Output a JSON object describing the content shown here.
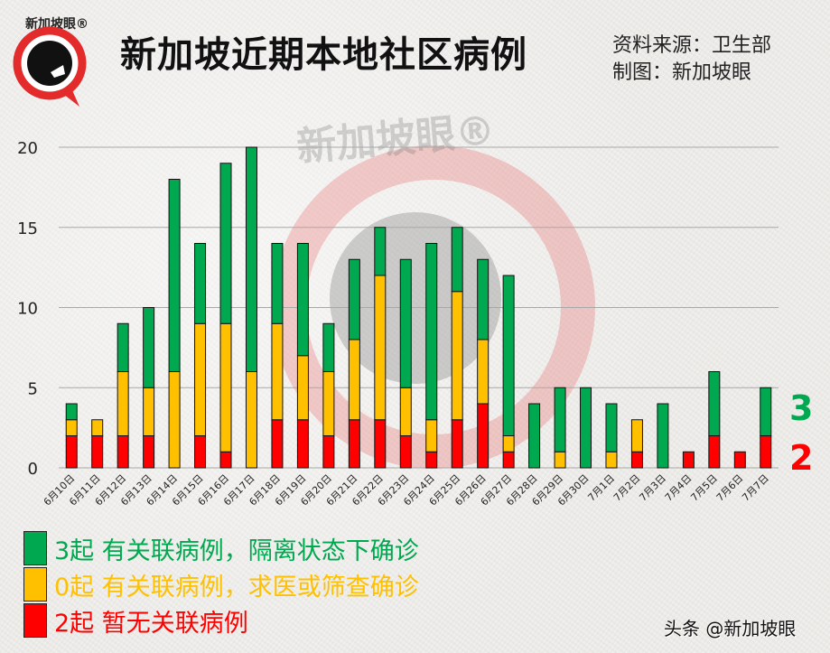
{
  "logo_text": "新加坡眼®",
  "watermark_text": "新加坡眼®",
  "header": {
    "title": "新加坡近期本地社区病例",
    "source": "资料来源：卫生部",
    "made_by": "制图：新加坡眼"
  },
  "legend": [
    {
      "label": "3起 有关联病例，隔离状态下确诊",
      "color": "#00a84f"
    },
    {
      "label": "0起 有关联病例，求医或筛查确诊",
      "color": "#ffc000"
    },
    {
      "label": "2起 暂无关联病例",
      "color": "#ff0000"
    }
  ],
  "latest": {
    "linked_quarantined": "3",
    "unlinked": "2"
  },
  "credit": "头条 @新加坡眼",
  "chart_data": {
    "type": "bar",
    "stacked": true,
    "title": "新加坡近期本地社区病例",
    "categories": [
      "6月10日",
      "6月11日",
      "6月12日",
      "6月13日",
      "6月14日",
      "6月15日",
      "6月16日",
      "6月17日",
      "6月18日",
      "6月19日",
      "6月20日",
      "6月21日",
      "6月22日",
      "6月23日",
      "6月24日",
      "6月25日",
      "6月26日",
      "6月27日",
      "6月28日",
      "6月29日",
      "6月30日",
      "7月1日",
      "7月2日",
      "7月3日",
      "7月4日",
      "7月5日",
      "7月6日",
      "7月7日"
    ],
    "series": [
      {
        "key": "unlinked",
        "color": "#ff0000",
        "values": [
          2,
          2,
          2,
          2,
          0,
          2,
          1,
          0,
          3,
          3,
          2,
          3,
          3,
          2,
          1,
          3,
          4,
          1,
          0,
          0,
          0,
          0,
          1,
          0,
          1,
          2,
          1,
          2
        ]
      },
      {
        "key": "linked_community",
        "color": "#ffc000",
        "values": [
          1,
          1,
          4,
          3,
          6,
          7,
          8,
          6,
          6,
          4,
          4,
          5,
          9,
          3,
          2,
          8,
          4,
          1,
          0,
          1,
          0,
          1,
          2,
          0,
          0,
          0,
          0,
          0
        ]
      },
      {
        "key": "linked_quarantined",
        "color": "#00a84f",
        "values": [
          1,
          0,
          3,
          5,
          12,
          5,
          10,
          14,
          5,
          7,
          3,
          5,
          3,
          8,
          11,
          4,
          5,
          10,
          4,
          4,
          5,
          3,
          0,
          4,
          0,
          4,
          0,
          3
        ]
      }
    ],
    "yticks": [
      "0",
      "5",
      "10",
      "15",
      "20"
    ],
    "ylim": [
      0,
      20
    ],
    "grid": true
  }
}
